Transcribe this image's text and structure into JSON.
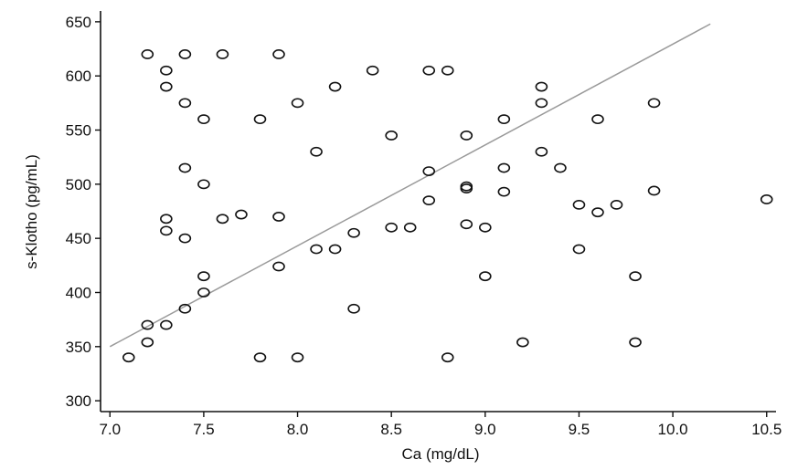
{
  "chart_data": {
    "type": "scatter",
    "title": "",
    "xlabel": "Ca (mg/dL)",
    "ylabel": "s-Klotho (pg/mL)",
    "xlim": [
      6.95,
      10.55
    ],
    "ylim": [
      290,
      660
    ],
    "xticks": [
      "7.0",
      "7.5",
      "8.0",
      "8.5",
      "9.0",
      "9.5",
      "10.0",
      "10.5"
    ],
    "xtick_values": [
      7.0,
      7.5,
      8.0,
      8.5,
      9.0,
      9.5,
      10.0,
      10.5
    ],
    "yticks": [
      "300",
      "350",
      "400",
      "450",
      "500",
      "550",
      "600",
      "650"
    ],
    "ytick_values": [
      300,
      350,
      400,
      450,
      500,
      550,
      600,
      650
    ],
    "grid": false,
    "fit_line": {
      "x": [
        7.0,
        10.2
      ],
      "y": [
        350,
        648
      ]
    },
    "points": {
      "x": [
        7.1,
        7.2,
        7.2,
        7.2,
        7.3,
        7.3,
        7.3,
        7.3,
        7.3,
        7.4,
        7.4,
        7.4,
        7.4,
        7.4,
        7.5,
        7.5,
        7.5,
        7.5,
        7.6,
        7.6,
        7.7,
        7.8,
        7.8,
        7.9,
        7.9,
        7.9,
        8.0,
        8.0,
        8.1,
        8.1,
        8.2,
        8.2,
        8.3,
        8.3,
        8.4,
        8.5,
        8.5,
        8.6,
        8.7,
        8.7,
        8.7,
        8.8,
        8.8,
        8.9,
        8.9,
        8.9,
        8.9,
        9.0,
        9.0,
        9.1,
        9.1,
        9.1,
        9.2,
        9.3,
        9.3,
        9.3,
        9.4,
        9.5,
        9.5,
        9.6,
        9.6,
        9.7,
        9.8,
        9.8,
        9.9,
        9.9,
        10.5
      ],
      "y": [
        340,
        620,
        370,
        354,
        605,
        590,
        468,
        457,
        370,
        620,
        575,
        515,
        450,
        385,
        560,
        500,
        415,
        400,
        620,
        468,
        472,
        560,
        340,
        620,
        470,
        424,
        575,
        340,
        530,
        440,
        590,
        440,
        455,
        385,
        605,
        545,
        460,
        460,
        605,
        512,
        485,
        605,
        340,
        545,
        498,
        496,
        463,
        460,
        415,
        560,
        515,
        493,
        354,
        590,
        575,
        530,
        515,
        481,
        440,
        560,
        474,
        481,
        415,
        354,
        575,
        494,
        486
      ]
    }
  }
}
